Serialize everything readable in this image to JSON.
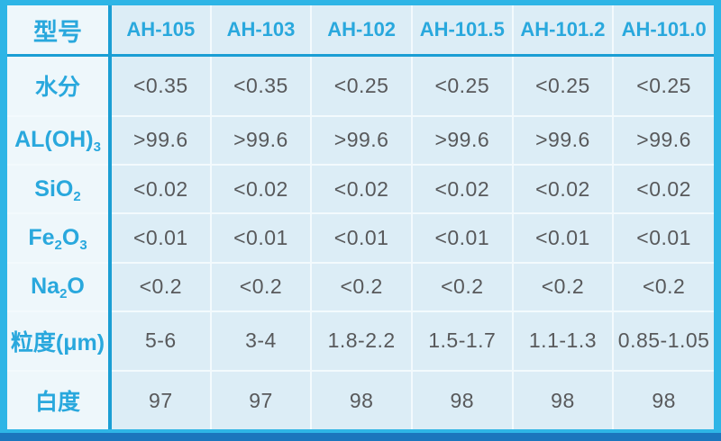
{
  "colors": {
    "frame": "#2eb5e6",
    "strong_line": "#1a9ed4",
    "bottom_bar": "#1b76bd",
    "cell_bg": "#dcedf6",
    "label_bg": "#eef7fb",
    "gridline": "#f3fafd",
    "header_text": "#29a8dd",
    "value_text": "#58595b"
  },
  "table": {
    "corner_label": "型号",
    "columns": [
      "AH-105",
      "AH-103",
      "AH-102",
      "AH-101.5",
      "AH-101.2",
      "AH-101.0"
    ],
    "rows": [
      {
        "name": "moisture",
        "label": [
          {
            "text": "水分"
          }
        ],
        "values": [
          "<0.35",
          "<0.35",
          "<0.25",
          "<0.25",
          "<0.25",
          "<0.25"
        ]
      },
      {
        "name": "al-oh-3",
        "label": [
          {
            "text": "AL(OH)"
          },
          {
            "text": "3",
            "sub": true
          }
        ],
        "values": [
          ">99.6",
          ">99.6",
          ">99.6",
          ">99.6",
          ">99.6",
          ">99.6"
        ]
      },
      {
        "name": "sio2",
        "label": [
          {
            "text": "SiO"
          },
          {
            "text": "2",
            "sub": true
          }
        ],
        "values": [
          "<0.02",
          "<0.02",
          "<0.02",
          "<0.02",
          "<0.02",
          "<0.02"
        ]
      },
      {
        "name": "fe2o3",
        "label": [
          {
            "text": "Fe"
          },
          {
            "text": "2",
            "sub": true
          },
          {
            "text": "O"
          },
          {
            "text": "3",
            "sub": true
          }
        ],
        "values": [
          "<0.01",
          "<0.01",
          "<0.01",
          "<0.01",
          "<0.01",
          "<0.01"
        ]
      },
      {
        "name": "na2o",
        "label": [
          {
            "text": "Na"
          },
          {
            "text": "2",
            "sub": true
          },
          {
            "text": "O"
          }
        ],
        "values": [
          "<0.2",
          "<0.2",
          "<0.2",
          "<0.2",
          "<0.2",
          "<0.2"
        ]
      },
      {
        "name": "particle-size",
        "label": [
          {
            "text": "粒度(μm)"
          }
        ],
        "values": [
          "5-6",
          "3-4",
          "1.8-2.2",
          "1.5-1.7",
          "1.1-1.3",
          "0.85-1.05"
        ]
      },
      {
        "name": "whiteness",
        "label": [
          {
            "text": "白度"
          }
        ],
        "values": [
          "97",
          "97",
          "98",
          "98",
          "98",
          "98"
        ]
      }
    ]
  },
  "chart_data": {
    "type": "table",
    "title": "",
    "columns": [
      "型号",
      "AH-105",
      "AH-103",
      "AH-102",
      "AH-101.5",
      "AH-101.2",
      "AH-101.0"
    ],
    "rows": [
      [
        "水分",
        "<0.35",
        "<0.35",
        "<0.25",
        "<0.25",
        "<0.25",
        "<0.25"
      ],
      [
        "AL(OH)3",
        ">99.6",
        ">99.6",
        ">99.6",
        ">99.6",
        ">99.6",
        ">99.6"
      ],
      [
        "SiO2",
        "<0.02",
        "<0.02",
        "<0.02",
        "<0.02",
        "<0.02",
        "<0.02"
      ],
      [
        "Fe2O3",
        "<0.01",
        "<0.01",
        "<0.01",
        "<0.01",
        "<0.01",
        "<0.01"
      ],
      [
        "Na2O",
        "<0.2",
        "<0.2",
        "<0.2",
        "<0.2",
        "<0.2",
        "<0.2"
      ],
      [
        "粒度(μm)",
        "5-6",
        "3-4",
        "1.8-2.2",
        "1.5-1.7",
        "1.1-1.3",
        "0.85-1.05"
      ],
      [
        "白度",
        "97",
        "97",
        "98",
        "98",
        "98",
        "98"
      ]
    ]
  }
}
